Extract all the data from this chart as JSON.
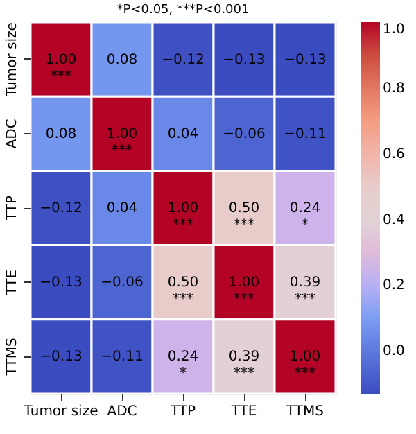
{
  "chart_data": {
    "type": "heatmap",
    "title": "*P<0.05, ***P<0.001",
    "categories": [
      "Tumor size",
      "ADC",
      "TTP",
      "TTE",
      "TTMS"
    ],
    "y_categories": [
      "Tumor size",
      "ADC",
      "TTP",
      "TTE",
      "TTMS"
    ],
    "cells": [
      [
        1.0,
        0.08,
        -0.12,
        -0.13,
        -0.13
      ],
      [
        0.08,
        1.0,
        0.04,
        -0.06,
        -0.11
      ],
      [
        -0.12,
        0.04,
        1.0,
        0.5,
        0.24
      ],
      [
        -0.13,
        -0.06,
        0.5,
        1.0,
        0.39
      ],
      [
        -0.13,
        -0.11,
        0.24,
        0.39,
        1.0
      ]
    ],
    "cell_labels": [
      [
        "1.00\n***",
        "0.08",
        "−0.12",
        "−0.13",
        "−0.13"
      ],
      [
        "0.08",
        "1.00\n***",
        "0.04",
        "−0.06",
        "−0.11"
      ],
      [
        "−0.12",
        "0.04",
        "1.00\n***",
        "0.50\n***",
        "0.24\n*"
      ],
      [
        "−0.13",
        "−0.06",
        "0.50\n***",
        "1.00\n***",
        "0.39\n***"
      ],
      [
        "−0.13",
        "−0.11",
        "0.24\n*",
        "0.39\n***",
        "1.00\n***"
      ]
    ],
    "clim": [
      -0.13,
      1.0
    ],
    "cticks": [
      {
        "value": 0,
        "label": "0.0"
      },
      {
        "value": 0.2,
        "label": "0.2"
      },
      {
        "value": 0.4,
        "label": "0.4"
      },
      {
        "value": 0.6,
        "label": "0.6"
      },
      {
        "value": 0.8,
        "label": "0.8"
      },
      {
        "value": 1.0,
        "label": "1.0"
      }
    ],
    "colors": [
      "#3b4cc0",
      "#8db0fe",
      "#dddcdc",
      "#f49a7b",
      "#b40426"
    ]
  }
}
